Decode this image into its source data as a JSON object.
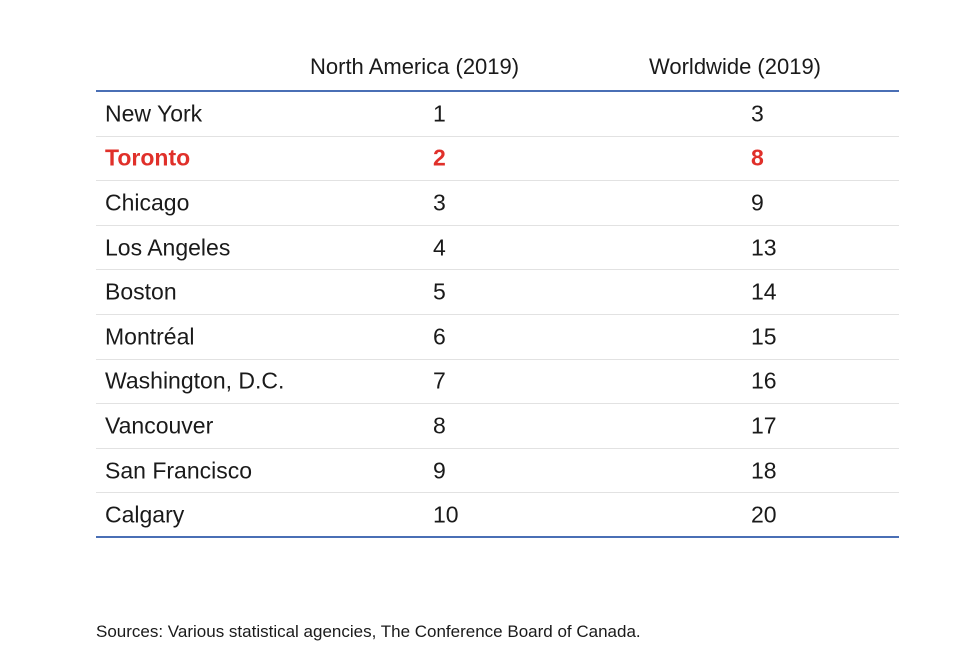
{
  "chart_data": {
    "type": "table",
    "columns": [
      "",
      "North America (2019)",
      "Worldwide (2019)"
    ],
    "rows": [
      {
        "city": "New York",
        "north_america": "1",
        "worldwide": "3",
        "highlight": false
      },
      {
        "city": "Toronto",
        "north_america": "2",
        "worldwide": "8",
        "highlight": true
      },
      {
        "city": "Chicago",
        "north_america": "3",
        "worldwide": "9",
        "highlight": false
      },
      {
        "city": "Los Angeles",
        "north_america": "4",
        "worldwide": "13",
        "highlight": false
      },
      {
        "city": "Boston",
        "north_america": "5",
        "worldwide": "14",
        "highlight": false
      },
      {
        "city": "Montréal",
        "north_america": "6",
        "worldwide": "15",
        "highlight": false
      },
      {
        "city": "Washington, D.C.",
        "north_america": "7",
        "worldwide": "16",
        "highlight": false
      },
      {
        "city": "Vancouver",
        "north_america": "8",
        "worldwide": "17",
        "highlight": false
      },
      {
        "city": "San Francisco",
        "north_america": "9",
        "worldwide": "18",
        "highlight": false
      },
      {
        "city": "Calgary",
        "north_america": "10",
        "worldwide": "20",
        "highlight": false
      }
    ],
    "source": "Sources: Various statistical agencies, The Conference Board of Canada."
  },
  "colors": {
    "rule": "#4a6fb5",
    "highlight": "#e0302a",
    "text": "#1a1a1a"
  }
}
